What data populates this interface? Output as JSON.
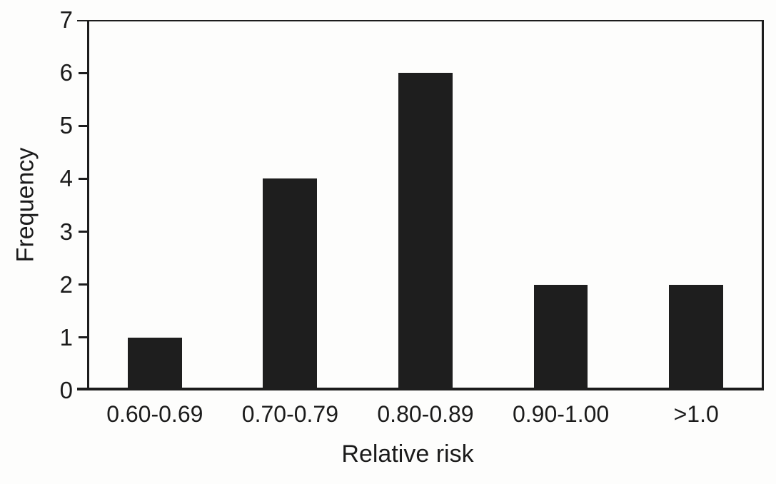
{
  "figure": {
    "background": "#fdfdfc",
    "ink_color": "#1c1c1c"
  },
  "chart_data": {
    "type": "bar",
    "title": "",
    "categories": [
      "0.60-0.69",
      "0.70-0.79",
      "0.80-0.89",
      "0.90-1.00",
      ">1.0"
    ],
    "values": [
      1,
      4,
      6,
      2,
      2
    ],
    "xlabel": "Relative risk",
    "ylabel": "Frequency",
    "ylim": [
      0,
      7
    ],
    "yticks": [
      0,
      1,
      2,
      3,
      4,
      5,
      6,
      7
    ],
    "bar_color": "#1e1e1e",
    "grid": false,
    "legend": false,
    "plot_border": "full-box",
    "tick_direction": "out"
  }
}
